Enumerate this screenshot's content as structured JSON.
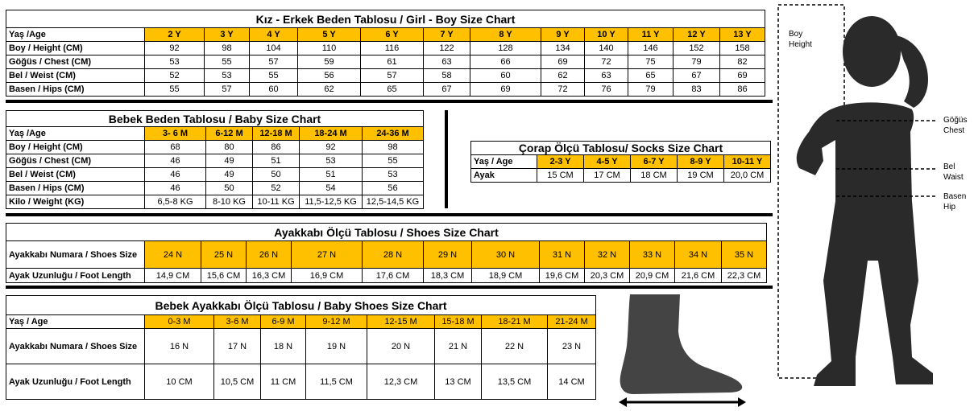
{
  "kids": {
    "title": "Kız - Erkek Beden Tablosu / Girl - Boy Size Chart",
    "header": [
      "Yaş /Age",
      "2 Y",
      "3 Y",
      "4 Y",
      "5 Y",
      "6 Y",
      "7 Y",
      "8 Y",
      "9 Y",
      "10 Y",
      "11 Y",
      "12 Y",
      "13 Y"
    ],
    "rows": [
      [
        "Boy / Height (CM)",
        "92",
        "98",
        "104",
        "110",
        "116",
        "122",
        "128",
        "134",
        "140",
        "146",
        "152",
        "158"
      ],
      [
        "Göğüs / Chest (CM)",
        "53",
        "55",
        "57",
        "59",
        "61",
        "63",
        "66",
        "69",
        "72",
        "75",
        "79",
        "82"
      ],
      [
        "Bel / Weist (CM)",
        "52",
        "53",
        "55",
        "56",
        "57",
        "58",
        "60",
        "62",
        "63",
        "65",
        "67",
        "69"
      ],
      [
        "Basen / Hips (CM)",
        "55",
        "57",
        "60",
        "62",
        "65",
        "67",
        "69",
        "72",
        "76",
        "79",
        "83",
        "86"
      ]
    ]
  },
  "baby": {
    "title": "Bebek Beden Tablosu / Baby Size Chart",
    "header": [
      "Yaş /Age",
      "3- 6 M",
      "6-12 M",
      "12-18 M",
      "18-24 M",
      "24-36 M"
    ],
    "rows": [
      [
        "Boy / Height (CM)",
        "68",
        "80",
        "86",
        "92",
        "98"
      ],
      [
        "Göğüs / Chest (CM)",
        "46",
        "49",
        "51",
        "53",
        "55"
      ],
      [
        "Bel / Weist (CM)",
        "46",
        "49",
        "50",
        "51",
        "53"
      ],
      [
        "Basen / Hips (CM)",
        "46",
        "50",
        "52",
        "54",
        "56"
      ],
      [
        "Kilo / Weight (KG)",
        "6,5-8 KG",
        "8-10 KG",
        "10-11 KG",
        "11,5-12,5 KG",
        "12,5-14,5 KG"
      ]
    ]
  },
  "socks": {
    "title": "Çorap Ölçü Tablosu/ Socks Size Chart",
    "header": [
      "Yaş / Age",
      "2-3 Y",
      "4-5 Y",
      "6-7 Y",
      "8-9 Y",
      "10-11 Y"
    ],
    "rows": [
      [
        "Ayak",
        "15 CM",
        "17 CM",
        "18 CM",
        "19 CM",
        "20,0 CM"
      ]
    ]
  },
  "shoes": {
    "title": "Ayakkabı Ölçü Tablosu / Shoes Size Chart",
    "header": [
      "Ayakkabı Numara / Shoes Size",
      "24 N",
      "25 N",
      "26 N",
      "27 N",
      "28 N",
      "29 N",
      "30 N",
      "31 N",
      "32 N",
      "33 N",
      "34 N",
      "35 N"
    ],
    "rows": [
      [
        "Ayak Uzunluğu / Foot Length",
        "14,9 CM",
        "15,6 CM",
        "16,3 CM",
        "16,9 CM",
        "17,6 CM",
        "18,3 CM",
        "18,9 CM",
        "19,6 CM",
        "20,3 CM",
        "20,9 CM",
        "21,6 CM",
        "22,3 CM"
      ]
    ]
  },
  "babyshoes": {
    "title": "Bebek Ayakkabı Ölçü Tablosu / Baby Shoes Size Chart",
    "header": [
      "Yaş / Age",
      "0-3 M",
      "3-6 M",
      "6-9 M",
      "9-12 M",
      "12-15 M",
      "15-18 M",
      "18-21 M",
      "21-24 M"
    ],
    "rows": [
      [
        "Ayakkabı Numara / Shoes Size",
        "16 N",
        "17 N",
        "18 N",
        "19 N",
        "20 N",
        "21 N",
        "22 N",
        "23 N"
      ],
      [
        "Ayak Uzunluğu / Foot Length",
        "10 CM",
        "10,5 CM",
        "11 CM",
        "11,5 CM",
        "12,3 CM",
        "13 CM",
        "13,5 CM",
        "14 CM"
      ]
    ]
  },
  "figure": {
    "height_label": "Boy Height",
    "chest_label": "Göğüs Chest",
    "waist_label": "Bel Waist",
    "hip_label": "Basen Hip"
  }
}
